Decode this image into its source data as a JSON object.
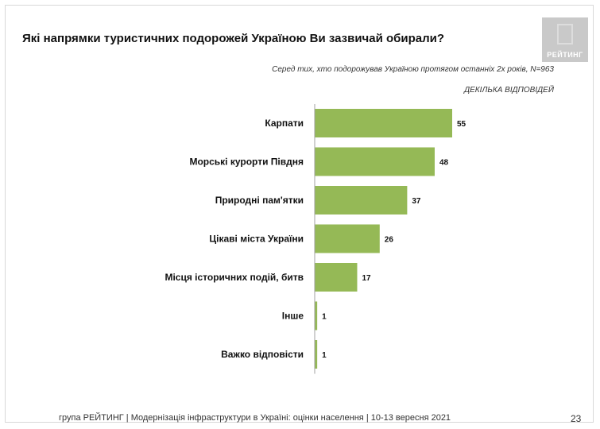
{
  "header": {
    "title": "Які напрямки туристичних подорожей Україною Ви зазвичай обирали?",
    "subtitle": "Серед тих, хто подорожував Україною протягом останніх 2х років, N=963",
    "note": "ДЕКІЛЬКА ВІДПОВІДЕЙ",
    "logo_text": "РЕЙТИНГ"
  },
  "footer": {
    "text": "група РЕЙТИНГ | Модернізація інфраструктури в Україні: оцінки населення | 10-13 вересня 2021",
    "page": "23"
  },
  "colors": {
    "bar": "#95b956",
    "axis": "#a0a0a0"
  },
  "chart_data": {
    "type": "bar",
    "orientation": "horizontal",
    "categories": [
      "Карпати",
      "Морські курорти Півдня",
      "Природні пам'ятки",
      "Цікаві міста України",
      "Місця історичних подій, битв",
      "Інше",
      "Важко відповісти"
    ],
    "values": [
      55,
      48,
      37,
      26,
      17,
      1,
      1
    ],
    "xlim": [
      0,
      60
    ],
    "grid": false,
    "legend": "none"
  }
}
